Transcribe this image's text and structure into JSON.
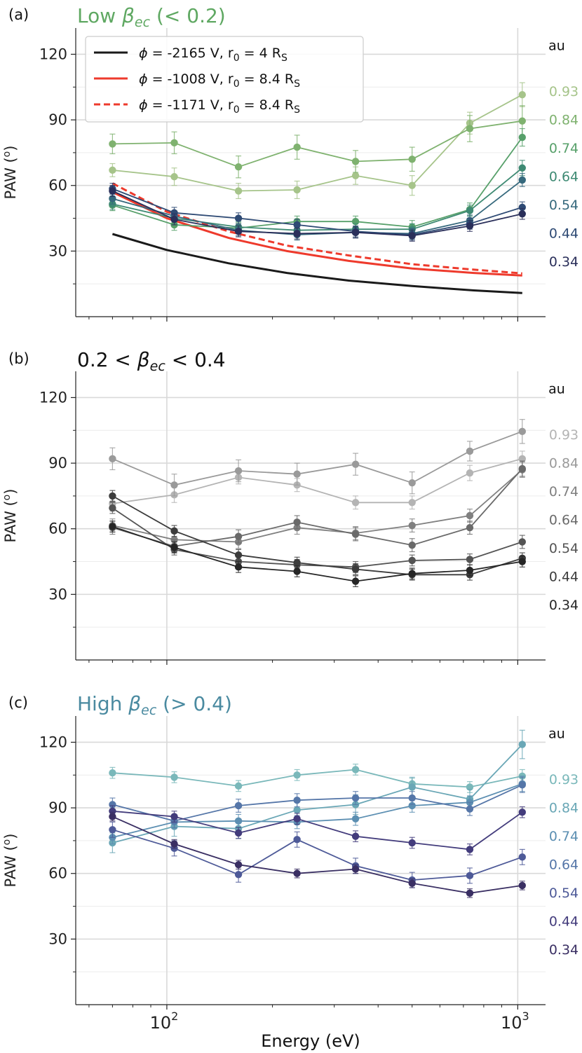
{
  "figure": {
    "xlabel": "Energy (eV)",
    "x_ticks": [
      {
        "value": 100,
        "base": "10",
        "exp": "2"
      },
      {
        "value": 1000,
        "base": "10",
        "exp": "3"
      }
    ],
    "energies": [
      70,
      105,
      160,
      235,
      345,
      500,
      730,
      1030
    ],
    "xlim": [
      55,
      1200
    ],
    "ylim": [
      0,
      132
    ],
    "y_ticks": [
      30,
      60,
      90,
      120
    ],
    "grid": true,
    "au_label": "au"
  },
  "chart_data": [
    {
      "type": "line",
      "panel_label": "(a)",
      "title_pre": "Low ",
      "title_post": " (< 0.2)",
      "title_color": "#5fa862",
      "ylabel": "PAW (",
      "ylabel_sup": "o",
      "ylabel_end": ")",
      "legend": {
        "placement": "upper-left",
        "entries": [
          {
            "phi": " = -2165 V, r",
            "sub0": "0",
            "rest": " = 4 R",
            "subS": "S",
            "color": "#1a1a1a",
            "dash": false
          },
          {
            "phi": " = -1008 V, r",
            "sub0": "0",
            "rest": " = 8.4 R",
            "subS": "S",
            "color": "#ee3a2c",
            "dash": false
          },
          {
            "phi": " = -1171 V, r",
            "sub0": "0",
            "rest": " = 8.4 R",
            "subS": "S",
            "color": "#ee3a2c",
            "dash": true
          }
        ]
      },
      "model_curves": [
        {
          "color": "#1a1a1a",
          "dash": false,
          "x": [
            70,
            100,
            150,
            220,
            330,
            500,
            750,
            1030
          ],
          "y": [
            37.8,
            30.5,
            24.4,
            20.0,
            16.5,
            14.0,
            12.0,
            10.8
          ]
        },
        {
          "color": "#ee3a2c",
          "dash": false,
          "x": [
            70,
            100,
            150,
            220,
            330,
            500,
            750,
            1030
          ],
          "y": [
            57.0,
            45.0,
            36.0,
            30.0,
            25.5,
            22.0,
            20.0,
            18.8
          ]
        },
        {
          "color": "#ee3a2c",
          "dash": true,
          "x": [
            70,
            100,
            150,
            220,
            330,
            500,
            750,
            1030
          ],
          "y": [
            61.0,
            48.0,
            39.0,
            32.5,
            28.0,
            24.0,
            21.5,
            19.8
          ]
        }
      ],
      "series": [
        {
          "name": "0.93",
          "color": "#a6c48a",
          "values": [
            67.0,
            64.0,
            57.5,
            58.0,
            64.5,
            60.0,
            88.5,
            101.5
          ],
          "err": [
            3.0,
            4.0,
            3.5,
            4.0,
            4.0,
            4.5,
            5.0,
            5.5
          ]
        },
        {
          "name": "0.84",
          "color": "#7fb26f",
          "values": [
            79.0,
            79.5,
            68.5,
            77.5,
            71.0,
            72.0,
            86.0,
            89.5
          ],
          "err": [
            4.5,
            5.0,
            5.0,
            5.5,
            5.0,
            5.5,
            6.0,
            7.0
          ]
        },
        {
          "name": "0.74",
          "color": "#57a06a",
          "values": [
            51.0,
            42.0,
            40.5,
            43.5,
            43.5,
            41.0,
            49.0,
            82.0
          ],
          "err": [
            2.5,
            2.5,
            2.5,
            2.5,
            2.5,
            3.0,
            3.0,
            4.0
          ]
        },
        {
          "name": "0.64",
          "color": "#3e8a73",
          "values": [
            51.5,
            45.0,
            41.0,
            39.5,
            40.0,
            40.0,
            48.5,
            68.0
          ],
          "err": [
            2.5,
            2.5,
            2.5,
            2.5,
            2.5,
            2.5,
            2.5,
            3.5
          ]
        },
        {
          "name": "0.54",
          "color": "#36697d",
          "values": [
            54.0,
            46.0,
            39.5,
            37.5,
            38.5,
            38.0,
            44.0,
            62.5
          ],
          "err": [
            2.5,
            2.5,
            2.5,
            2.5,
            2.5,
            2.5,
            2.5,
            3.0
          ]
        },
        {
          "name": "0.44",
          "color": "#2e4a74",
          "values": [
            58.5,
            47.5,
            45.0,
            42.0,
            39.0,
            37.5,
            42.5,
            50.0
          ],
          "err": [
            2.5,
            2.5,
            2.5,
            2.5,
            2.5,
            2.5,
            2.5,
            2.5
          ]
        },
        {
          "name": "0.34",
          "color": "#2a2f5a",
          "values": [
            57.5,
            44.5,
            39.0,
            38.0,
            38.5,
            37.0,
            41.5,
            47.0
          ],
          "err": [
            2.5,
            2.5,
            2.5,
            2.5,
            2.5,
            2.5,
            2.5,
            2.5
          ]
        }
      ]
    },
    {
      "type": "line",
      "panel_label": "(b)",
      "title_pre": "0.2 < ",
      "title_post": " < 0.4",
      "title_color": "#111111",
      "ylabel": "PAW (",
      "ylabel_sup": "o",
      "ylabel_end": ")",
      "model_curves": [],
      "series": [
        {
          "name": "0.93",
          "color": "#b4b4b4",
          "values": [
            71.5,
            75.5,
            83.5,
            80.0,
            72.0,
            72.0,
            85.5,
            92.0
          ],
          "err": [
            3.5,
            3.5,
            3.0,
            3.0,
            3.0,
            3.0,
            3.5,
            3.5
          ]
        },
        {
          "name": "0.84",
          "color": "#9a9a9a",
          "values": [
            92.0,
            80.0,
            86.5,
            85.0,
            89.5,
            81.0,
            95.5,
            104.5
          ],
          "err": [
            5.0,
            5.0,
            5.0,
            5.0,
            5.0,
            5.0,
            4.5,
            5.5
          ]
        },
        {
          "name": "0.74",
          "color": "#808080",
          "values": [
            61.5,
            55.0,
            54.0,
            60.5,
            58.0,
            61.5,
            66.0,
            87.0
          ],
          "err": [
            3.0,
            3.0,
            3.0,
            3.0,
            3.0,
            3.0,
            3.0,
            3.5
          ]
        },
        {
          "name": "0.64",
          "color": "#6a6a6a",
          "values": [
            60.5,
            52.0,
            56.5,
            63.0,
            57.5,
            52.5,
            60.5,
            87.5
          ],
          "err": [
            3.0,
            3.0,
            3.0,
            3.0,
            3.0,
            3.0,
            3.0,
            3.5
          ]
        },
        {
          "name": "0.54",
          "color": "#545454",
          "values": [
            69.5,
            50.5,
            45.0,
            43.5,
            42.5,
            45.5,
            46.0,
            54.0
          ],
          "err": [
            2.5,
            2.5,
            2.5,
            2.5,
            2.5,
            2.5,
            2.5,
            3.0
          ]
        },
        {
          "name": "0.44",
          "color": "#3c3c3c",
          "values": [
            75.0,
            59.0,
            48.0,
            44.5,
            41.5,
            39.0,
            39.0,
            46.5
          ],
          "err": [
            2.5,
            2.5,
            2.5,
            2.5,
            2.5,
            2.5,
            2.5,
            2.5
          ]
        },
        {
          "name": "0.34",
          "color": "#262626",
          "values": [
            61.0,
            51.5,
            42.5,
            40.5,
            36.0,
            39.5,
            41.0,
            45.0
          ],
          "err": [
            2.5,
            2.5,
            2.5,
            2.5,
            2.5,
            2.5,
            2.5,
            2.5
          ]
        }
      ]
    },
    {
      "type": "line",
      "panel_label": "(c)",
      "title_pre": "High ",
      "title_post": " (> 0.4)",
      "title_color": "#4a8aa0",
      "ylabel": "PAW (",
      "ylabel_sup": "o",
      "ylabel_end": ")",
      "model_curves": [],
      "series": [
        {
          "name": "0.93",
          "color": "#7ab8ba",
          "values": [
            106.0,
            104.0,
            100.0,
            105.0,
            107.5,
            101.0,
            99.5,
            104.5
          ],
          "err": [
            2.5,
            2.5,
            2.5,
            2.5,
            2.5,
            2.5,
            2.5,
            3.0
          ]
        },
        {
          "name": "0.84",
          "color": "#6aa7b6",
          "values": [
            74.0,
            81.5,
            80.5,
            89.0,
            91.5,
            99.5,
            94.0,
            119.0
          ],
          "err": [
            4.5,
            4.5,
            4.5,
            4.5,
            4.5,
            4.5,
            4.5,
            6.5
          ]
        },
        {
          "name": "0.74",
          "color": "#5c8fb2",
          "values": [
            76.5,
            83.5,
            84.0,
            83.5,
            85.0,
            91.0,
            92.5,
            101.0
          ],
          "err": [
            3.0,
            3.0,
            3.0,
            3.0,
            3.0,
            3.0,
            3.0,
            3.5
          ]
        },
        {
          "name": "0.64",
          "color": "#5576a8",
          "values": [
            91.5,
            84.0,
            91.0,
            93.5,
            94.5,
            94.5,
            89.5,
            100.5
          ],
          "err": [
            3.0,
            3.0,
            3.0,
            3.0,
            3.0,
            3.0,
            3.0,
            3.5
          ]
        },
        {
          "name": "0.54",
          "color": "#4e5a98",
          "values": [
            80.0,
            71.5,
            59.5,
            75.5,
            63.5,
            57.0,
            59.0,
            67.5
          ],
          "err": [
            3.5,
            3.5,
            3.5,
            3.5,
            3.5,
            3.5,
            3.5,
            3.5
          ]
        },
        {
          "name": "0.44",
          "color": "#433c7c",
          "values": [
            88.5,
            86.0,
            78.5,
            85.0,
            77.0,
            74.0,
            71.0,
            88.0
          ],
          "err": [
            2.5,
            2.5,
            2.5,
            2.5,
            2.5,
            2.5,
            2.5,
            2.5
          ]
        },
        {
          "name": "0.34",
          "color": "#3a2f63",
          "values": [
            86.0,
            73.5,
            64.0,
            60.0,
            62.0,
            55.5,
            51.0,
            54.5
          ],
          "err": [
            2.0,
            2.0,
            2.0,
            2.0,
            2.0,
            2.0,
            2.0,
            2.0
          ]
        }
      ]
    }
  ]
}
